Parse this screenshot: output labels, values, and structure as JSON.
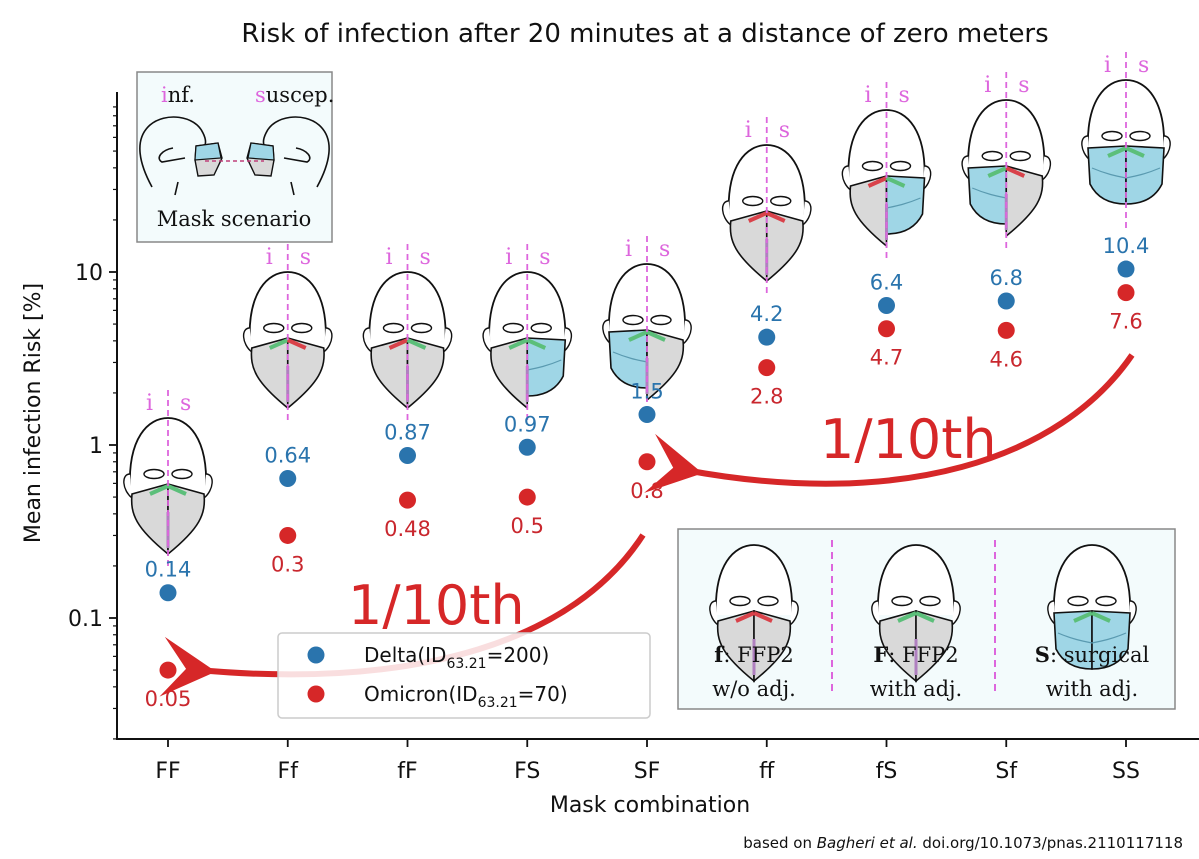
{
  "chart_data": {
    "type": "scatter",
    "title": "Risk of infection after 20 minutes at a distance of zero meters",
    "xlabel": "Mask combination",
    "ylabel": "Mean infection Risk [%]",
    "yscale": "log",
    "ylim": [
      0.025,
      70
    ],
    "yticks": [
      0.1,
      1,
      10
    ],
    "ytick_labels": [
      "0.1",
      "1",
      "10"
    ],
    "categories": [
      "FF",
      "Ff",
      "fF",
      "FS",
      "SF",
      "ff",
      "fS",
      "Sf",
      "SS"
    ],
    "series": [
      {
        "name": "Delta",
        "legend_main": "Delta(ID",
        "legend_sub": "63.21",
        "legend_tail": "=200)",
        "color": "#2a74ad",
        "values": [
          0.14,
          0.64,
          0.87,
          0.97,
          1.5,
          4.2,
          6.4,
          6.8,
          10.4
        ],
        "labels": [
          "0.14",
          "0.64",
          "0.87",
          "0.97",
          "1.5",
          "4.2",
          "6.4",
          "6.8",
          "10.4"
        ]
      },
      {
        "name": "Omicron",
        "legend_main": "Omicron(ID",
        "legend_sub": "63.21",
        "legend_tail": "=70)",
        "color": "#d62728",
        "values": [
          0.05,
          0.3,
          0.48,
          0.5,
          0.8,
          2.8,
          4.7,
          4.6,
          7.6
        ],
        "labels": [
          "0.05",
          "0.3",
          "0.48",
          "0.5",
          "0.8",
          "2.8",
          "4.7",
          "4.6",
          "7.6"
        ]
      }
    ],
    "legend_position": "lower-center",
    "annotations": [
      {
        "text": "1/10th",
        "from": "SF",
        "to": "FF",
        "series": "Omicron"
      },
      {
        "text": "1/10th",
        "from": "SS",
        "to": "SF",
        "series": "Omicron"
      }
    ],
    "mask_icons": {
      "infected_label": "i",
      "susceptible_label": "s",
      "combos": [
        "FF",
        "Ff",
        "fF",
        "FS",
        "SF",
        "ff",
        "fS",
        "Sf",
        "SS"
      ]
    },
    "scenario_inset": {
      "inf_prefix": "i",
      "inf_rest": "nf.",
      "sus_prefix": "s",
      "sus_rest": "uscep.",
      "caption": "Mask scenario"
    },
    "mask_key": [
      {
        "code": "f",
        "line1": ": FFP2",
        "line2": "w/o adj."
      },
      {
        "code": "F",
        "line1": ": FFP2",
        "line2": "with adj."
      },
      {
        "code": "S",
        "line1": ": surgical",
        "line2": "with adj."
      }
    ],
    "credit": {
      "prefix": "based on ",
      "authors": "Bagheri et al.",
      "doi": " doi.org/10.1073/pnas.2110117118"
    }
  },
  "colors": {
    "delta": "#2a74ad",
    "omicron": "#d62728",
    "mask_gray": "#d9d9d9",
    "mask_blue": "#9fd6e6",
    "divider_pink": "#dd66dd",
    "valve_ok": "#5cbf7a",
    "valve_bad": "#d9424a"
  }
}
